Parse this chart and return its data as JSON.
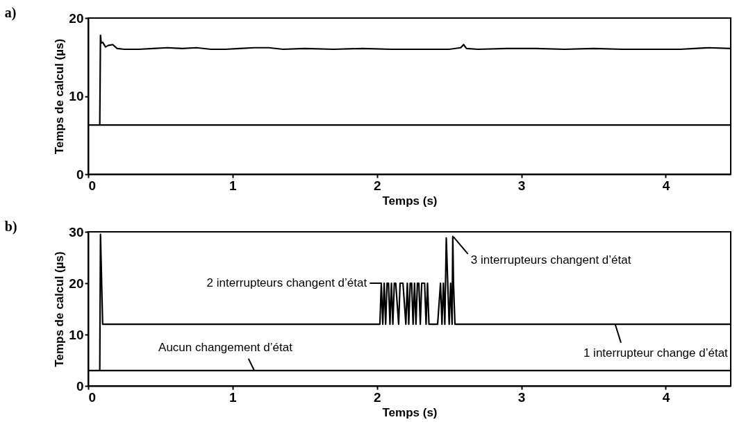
{
  "chart_data": [
    {
      "type": "line",
      "title": "a)",
      "xlabel": "Temps (s)",
      "ylabel": "Temps de calcul (µs)",
      "xlim": [
        0,
        4.45
      ],
      "ylim": [
        0,
        20
      ],
      "xticks": [
        0,
        1,
        2,
        3,
        4
      ],
      "yticks": [
        0,
        10,
        20
      ],
      "grid": false,
      "line_style": "solid",
      "marker": "none",
      "series": [
        {
          "color": "#000000",
          "x": [
            0,
            0.3,
            0.6,
            0.9,
            1.2,
            1.5,
            1.8,
            2.1,
            2.4,
            2.7,
            3.0,
            3.3,
            3.6,
            3.9,
            4.2,
            4.45
          ],
          "values": [
            6.3,
            6.3,
            6.3,
            6.3,
            6.3,
            6.3,
            6.3,
            6.3,
            6.3,
            6.3,
            6.3,
            6.3,
            6.3,
            6.3,
            6.3,
            6.3
          ]
        },
        {
          "color": "#000000",
          "x": [
            0.08,
            0.085,
            0.09,
            0.1,
            0.12,
            0.14,
            0.17,
            0.2,
            0.25,
            0.35,
            0.45,
            0.55,
            0.65,
            0.75,
            0.85,
            0.95,
            1.05,
            1.15,
            1.25,
            1.35,
            1.5,
            1.7,
            1.9,
            2.1,
            2.3,
            2.5,
            2.58,
            2.6,
            2.62,
            2.7,
            2.9,
            3.1,
            3.3,
            3.5,
            3.7,
            3.9,
            4.1,
            4.2,
            4.3,
            4.45
          ],
          "values": [
            6.3,
            17.8,
            16.8,
            16.9,
            16.3,
            16.5,
            16.6,
            16.1,
            16.0,
            16.0,
            16.1,
            16.2,
            16.1,
            16.2,
            16.0,
            16.0,
            16.1,
            16.2,
            16.2,
            16.0,
            16.1,
            16.0,
            16.1,
            16.0,
            16.0,
            16.0,
            16.2,
            16.6,
            16.1,
            16.0,
            16.1,
            16.1,
            16.0,
            16.1,
            16.0,
            16.0,
            16.0,
            16.1,
            16.2,
            16.1
          ]
        }
      ]
    },
    {
      "type": "line",
      "title": "b)",
      "xlabel": "Temps (s)",
      "ylabel": "Temps de calcul (µs)",
      "xlim": [
        0,
        4.45
      ],
      "ylim": [
        0,
        30
      ],
      "xticks": [
        0,
        1,
        2,
        3,
        4
      ],
      "yticks": [
        0,
        10,
        20,
        30
      ],
      "grid": false,
      "line_style": "solid",
      "marker": "none",
      "series": [
        {
          "color": "#000000",
          "x": [
            0,
            4.45
          ],
          "values": [
            3,
            3
          ]
        },
        {
          "color": "#000000",
          "x": [
            0.08,
            0.085,
            0.1,
            2.02,
            2.03,
            2.04,
            2.05,
            2.06,
            2.07,
            2.08,
            2.09,
            2.1,
            2.11,
            2.12,
            2.13,
            2.15,
            2.16,
            2.18,
            2.2,
            2.21,
            2.22,
            2.23,
            2.24,
            2.25,
            2.26,
            2.27,
            2.28,
            2.29,
            2.3,
            2.31,
            2.33,
            2.34,
            2.35,
            2.36,
            2.38,
            2.42,
            2.44,
            2.45,
            2.46,
            2.47,
            2.48,
            2.49,
            2.5,
            2.51,
            2.52,
            2.525,
            2.53,
            2.54,
            4.45
          ],
          "values": [
            3,
            29.5,
            12,
            12,
            20,
            12,
            20,
            12,
            20,
            20,
            12,
            20,
            12,
            20,
            20,
            12,
            20,
            20,
            12,
            20,
            12,
            20,
            20,
            12,
            20,
            12,
            20,
            20,
            12,
            20,
            20,
            12,
            20,
            12,
            12,
            12,
            20,
            12,
            20,
            12,
            28.8,
            20,
            12,
            20,
            12,
            29.1,
            20,
            12,
            12
          ]
        }
      ],
      "annotations": [
        {
          "text": "2 interrupteurs changent d’état",
          "x": 2.03,
          "y": 20
        },
        {
          "text": "3 interrupteurs changent d’état",
          "x": 2.53,
          "y": 29
        },
        {
          "text": "Aucun changement d’état",
          "x": 1.15,
          "y": 3
        },
        {
          "text": "1 interrupteur change d’état",
          "x": 3.65,
          "y": 12
        }
      ]
    }
  ]
}
